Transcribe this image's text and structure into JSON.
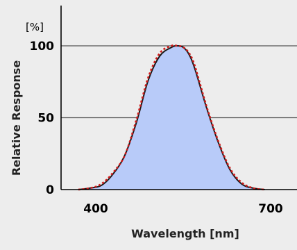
{
  "chart_data": {
    "type": "area",
    "xlabel": "Wavelength [nm]",
    "ylabel": "Relative Response",
    "ylabel_unit": "[%]",
    "x_ticks": [
      400,
      700
    ],
    "y_ticks": [
      0,
      50,
      100
    ],
    "xlim": [
      350,
      720
    ],
    "ylim": [
      0,
      130
    ],
    "grid": "horizontal",
    "series": [
      {
        "style": "solid",
        "color": "#1a1a1a",
        "fill": "#b8cbf9",
        "x": [
          370,
          390,
          410,
          430,
          450,
          470,
          490,
          510,
          530,
          540,
          550,
          560,
          570,
          590,
          610,
          630,
          650,
          670,
          690
        ],
        "y": [
          0,
          1,
          3,
          11,
          24,
          47,
          76,
          93,
          99,
          100,
          99,
          94,
          84,
          57,
          33,
          14,
          4,
          1,
          0
        ]
      },
      {
        "style": "dotted",
        "color": "#d11a1a",
        "x": [
          370,
          390,
          410,
          430,
          450,
          470,
          490,
          510,
          530,
          540,
          550,
          560,
          570,
          590,
          610,
          630,
          650,
          670,
          690
        ],
        "y": [
          0,
          1,
          4,
          12,
          24,
          49,
          78,
          95,
          100,
          100,
          99,
          95,
          86,
          58,
          34,
          15,
          5,
          1,
          0
        ]
      }
    ]
  }
}
